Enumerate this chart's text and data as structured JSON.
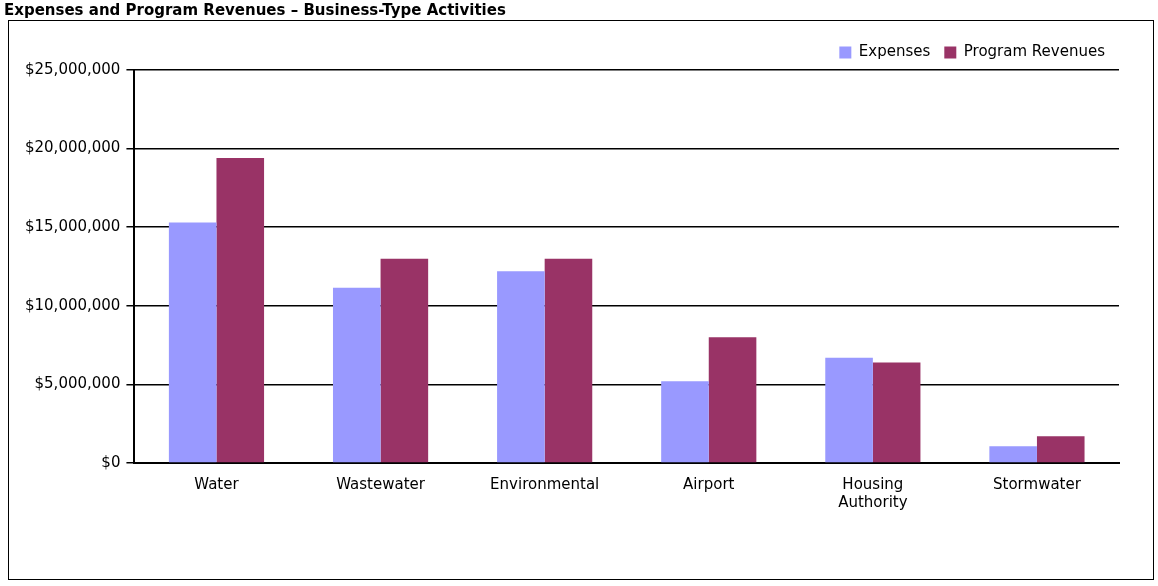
{
  "chart_data": {
    "type": "bar",
    "title": "Expenses and Program Revenues – Business-Type Activities",
    "categories": [
      "Water",
      "Wastewater",
      "Environmental",
      "Airport",
      "Housing Authority",
      "Stormwater"
    ],
    "series": [
      {
        "name": "Expenses",
        "color": "#9999ff",
        "values": [
          15300000,
          11150000,
          12200000,
          5200000,
          6700000,
          1070000
        ]
      },
      {
        "name": "Program Revenues",
        "color": "#993366",
        "values": [
          19400000,
          13000000,
          13000000,
          8000000,
          6400000,
          1700000
        ]
      }
    ],
    "ylim": [
      0,
      25000000
    ],
    "yticks": [
      {
        "value": 0,
        "label": "$0"
      },
      {
        "value": 5000000,
        "label": "$5,000,000"
      },
      {
        "value": 10000000,
        "label": "$10,000,000"
      },
      {
        "value": 15000000,
        "label": "$15,000,000"
      },
      {
        "value": 20000000,
        "label": "$20,000,000"
      },
      {
        "value": 25000000,
        "label": "$25,000,000"
      }
    ],
    "grid": "y",
    "legend": "top right"
  }
}
